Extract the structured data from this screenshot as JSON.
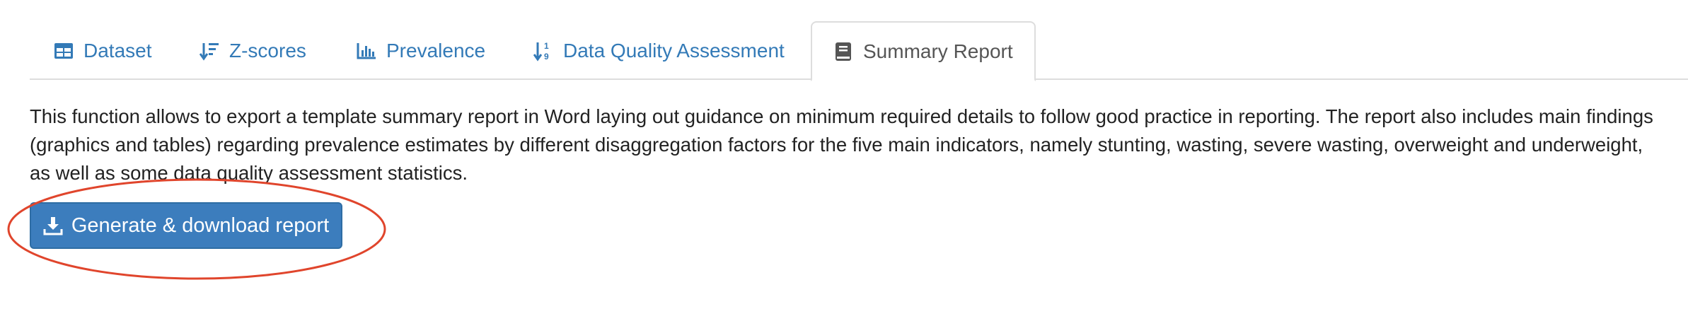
{
  "tabs": [
    {
      "label": "Dataset",
      "icon": "table-icon",
      "active": false
    },
    {
      "label": "Z-scores",
      "icon": "sort-amount-down-icon",
      "active": false
    },
    {
      "label": "Prevalence",
      "icon": "bar-chart-icon",
      "active": false
    },
    {
      "label": "Data Quality Assessment",
      "icon": "sort-numeric-down-icon",
      "active": false
    },
    {
      "label": "Summary Report",
      "icon": "book-icon",
      "active": true
    }
  ],
  "description": "This function allows to export a template summary report in Word laying out guidance on minimum required details to follow good practice in reporting. The report also includes main findings (graphics and tables) regarding prevalence estimates by different disaggregation factors for the five main indicators, namely stunting, wasting, severe wasting, overweight and underweight, as well as some data quality assessment statistics.",
  "download_button": {
    "label": "Generate & download report",
    "icon": "download-icon"
  },
  "colors": {
    "link": "#337ab7",
    "active_tab_text": "#555555",
    "button_bg": "#3c7dbd",
    "annotation": "#e0452c"
  }
}
